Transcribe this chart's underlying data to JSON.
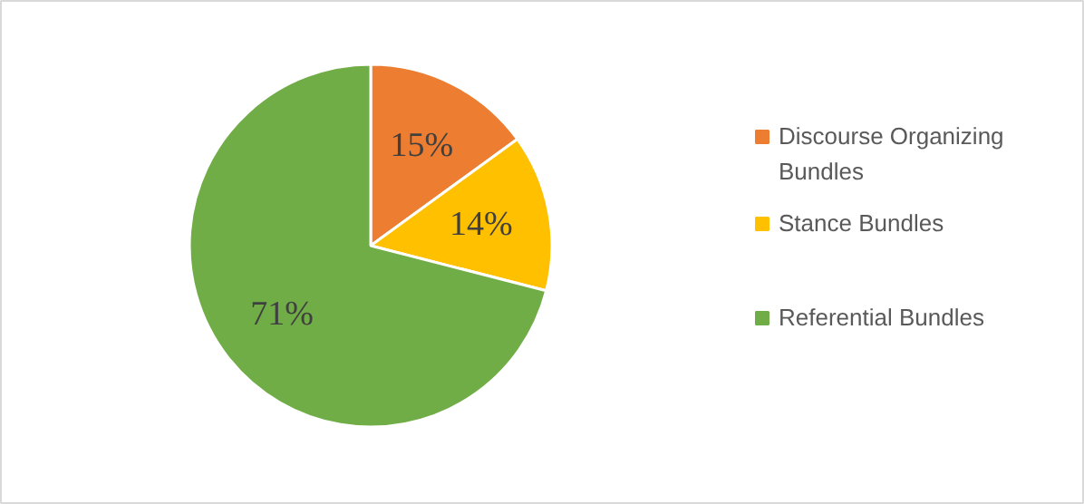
{
  "chart_data": {
    "type": "pie",
    "categories": [
      "Discourse Organizing Bundles",
      "Stance Bundles",
      "Referential Bundles"
    ],
    "values": [
      15,
      14,
      71
    ],
    "colors": [
      "#ed7d31",
      "#ffc000",
      "#70ad47"
    ],
    "value_labels": [
      "15%",
      "14%",
      "71%"
    ],
    "legend": "right"
  }
}
